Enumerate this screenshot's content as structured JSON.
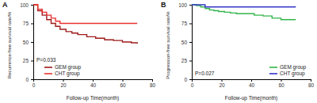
{
  "chart_data": [
    {
      "type": "line",
      "title": "A",
      "line_style": "step",
      "x_label": "Follow-up Time(month)",
      "y_label": "Recurrence-free survival rate/%",
      "x": [
        0,
        3,
        6,
        9,
        12,
        15,
        18,
        22,
        26,
        30,
        36,
        42,
        48,
        54,
        60,
        66,
        70
      ],
      "series": [
        {
          "name": "GEM group",
          "color": "#9e1b1b",
          "values": [
            100,
            92,
            86,
            80,
            75,
            71,
            67,
            64,
            62,
            60,
            57,
            55,
            53,
            52,
            50,
            49,
            48
          ]
        },
        {
          "name": "CHT group",
          "color": "#e8312f",
          "values": [
            100,
            94,
            90,
            86,
            82,
            78,
            75,
            75,
            75,
            75,
            75,
            75,
            75,
            75,
            75,
            75,
            75
          ]
        }
      ],
      "xlim": [
        0,
        80
      ],
      "xticks": [
        0,
        20,
        40,
        60,
        80
      ],
      "ylim": [
        0,
        100
      ],
      "yticks": [
        0,
        25,
        50,
        75,
        100
      ],
      "legend": "lower left",
      "annotations": [
        "P=0.033"
      ]
    },
    {
      "type": "line",
      "title": "B",
      "line_style": "step",
      "x_label": "Follow-up Time(month)",
      "y_label": "Progression-free survival rate/%",
      "x": [
        0,
        3,
        6,
        9,
        12,
        15,
        18,
        22,
        26,
        30,
        36,
        42,
        48,
        54,
        60,
        66,
        70
      ],
      "series": [
        {
          "name": "GEM group",
          "color": "#33b54a",
          "values": [
            100,
            99,
            97,
            95,
            93,
            92,
            91,
            90,
            89,
            88,
            88,
            86,
            85,
            82,
            80,
            80,
            80
          ]
        },
        {
          "name": "CHT group",
          "color": "#3535c8",
          "values": [
            100,
            100,
            100,
            97,
            97,
            97,
            97,
            97,
            97,
            97,
            97,
            97,
            97,
            97,
            97,
            97,
            97
          ]
        }
      ],
      "xlim": [
        0,
        80
      ],
      "xticks": [
        0,
        20,
        40,
        60,
        80
      ],
      "ylim": [
        0,
        100
      ],
      "yticks": [
        0,
        25,
        50,
        75,
        100
      ],
      "legend": "lower right",
      "annotations": [
        "P=0.027"
      ]
    }
  ]
}
